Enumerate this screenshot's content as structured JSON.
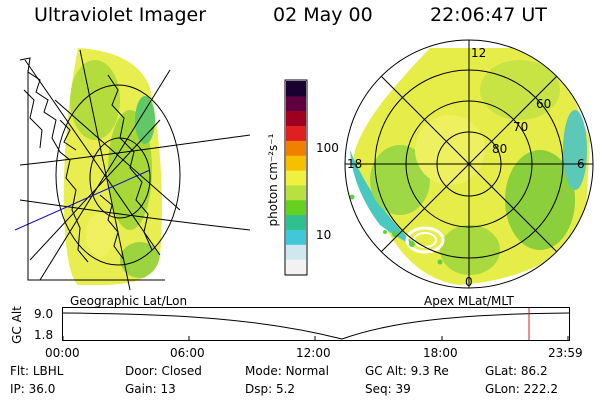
{
  "header": {
    "title": "Ultraviolet Imager",
    "date": "02 May 00",
    "time": "22:06:47 UT"
  },
  "left_panel": {
    "caption": "Geographic Lat/Lon"
  },
  "right_panel": {
    "caption": "Apex MLat/MLT",
    "mlt_labels": [
      "12",
      "6",
      "0",
      "18"
    ],
    "lat_labels": [
      "60",
      "70",
      "80"
    ]
  },
  "colorbar": {
    "axis_label": "photon cm⁻²s⁻¹",
    "tick_labels": [
      "100",
      "10"
    ],
    "scale": "log",
    "colors": [
      "#f2f2f2",
      "#cfe8f0",
      "#40c8d8",
      "#30c090",
      "#66d020",
      "#b8e040",
      "#f0f040",
      "#f6c000",
      "#f08000",
      "#e02020",
      "#a00020",
      "#600040",
      "#1a0030"
    ]
  },
  "timeline": {
    "ylabel": "GC Alt",
    "y_ticks": [
      "9.0",
      "1.8"
    ],
    "x_ticks": [
      "00:00",
      "06:00",
      "12:00",
      "18:00",
      "23:59"
    ],
    "marker_color": "#d02020"
  },
  "info": {
    "row1": [
      {
        "label": "Flt:",
        "value": "LBHL"
      },
      {
        "label": "Door:",
        "value": "Closed"
      },
      {
        "label": "Mode:",
        "value": "Normal"
      },
      {
        "label": "GC Alt:",
        "value": "9.3 Re"
      },
      {
        "label": "GLat:",
        "value": "86.2"
      }
    ],
    "row2": [
      {
        "label": "IP:",
        "value": "36.0"
      },
      {
        "label": "Gain:",
        "value": "13"
      },
      {
        "label": "Dsp:",
        "value": "5.2"
      },
      {
        "label": "Seq:",
        "value": "39"
      },
      {
        "label": "GLon:",
        "value": "222.2"
      }
    ]
  }
}
